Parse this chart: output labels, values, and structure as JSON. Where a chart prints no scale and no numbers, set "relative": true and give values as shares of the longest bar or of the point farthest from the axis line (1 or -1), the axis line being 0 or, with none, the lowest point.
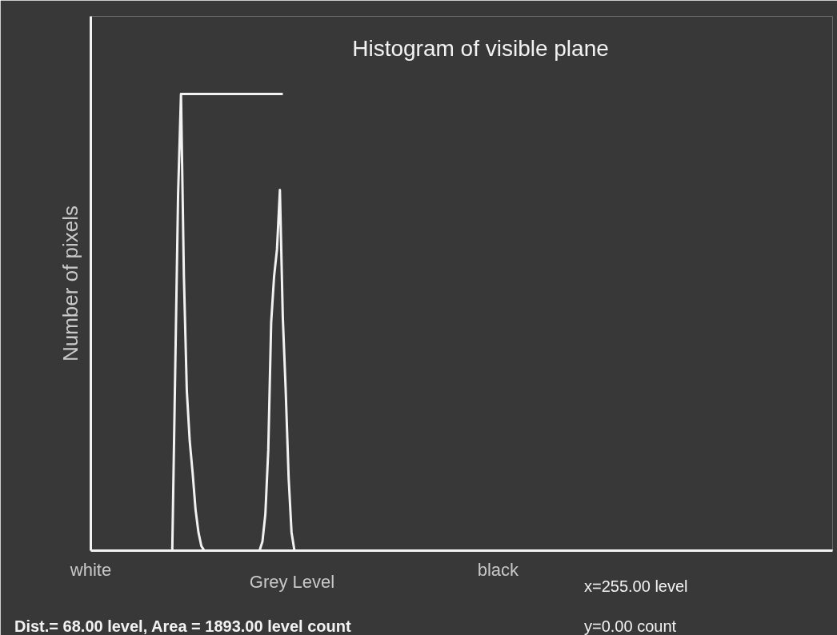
{
  "chart_data": {
    "type": "line",
    "title": "Histogram of visible plane",
    "xlabel": "Grey Level",
    "ylabel": "Number of pixels",
    "relative": true,
    "categories": [
      "white",
      null,
      null,
      null,
      null,
      null,
      null,
      null,
      null,
      null,
      null,
      null,
      null,
      null,
      null,
      null,
      null,
      null,
      null,
      null,
      null,
      null,
      null,
      null,
      null,
      null,
      null,
      null,
      null,
      null,
      null,
      null,
      null,
      null,
      null,
      null,
      null,
      null,
      null,
      null,
      null,
      null,
      null,
      null,
      null,
      null,
      null,
      null,
      null,
      null,
      null,
      null,
      null,
      null,
      null,
      null,
      null,
      null,
      null,
      null,
      null,
      null,
      null,
      null,
      null,
      null,
      null,
      null,
      null,
      null,
      null,
      null,
      null,
      null,
      null,
      null,
      null,
      null,
      null,
      null,
      null,
      null,
      null,
      null,
      null,
      null,
      null,
      null,
      null,
      null,
      null,
      null,
      null,
      null,
      null,
      null,
      null,
      null,
      null,
      null,
      null,
      null,
      null,
      null,
      null,
      null,
      null,
      null,
      null,
      null,
      null,
      null,
      null,
      null,
      null,
      null,
      null,
      null,
      null,
      null,
      null,
      null,
      null,
      null,
      null,
      null,
      null,
      null,
      null,
      null,
      null,
      null,
      null,
      null,
      null,
      null,
      null,
      null,
      null,
      null,
      "black",
      null,
      null,
      null,
      null,
      null,
      null,
      null,
      null,
      null,
      null,
      null,
      null,
      null,
      null,
      null,
      null,
      null,
      null,
      null,
      null,
      null,
      null,
      null,
      null,
      null,
      null,
      null,
      null,
      null,
      null,
      null,
      null,
      null,
      null,
      null,
      null,
      null,
      null,
      null,
      null,
      null,
      null,
      null,
      null,
      null,
      null,
      null,
      null,
      null,
      null,
      null,
      null,
      null,
      null,
      null,
      null,
      null,
      null,
      null,
      null,
      null,
      null,
      null,
      null,
      null,
      null,
      null,
      null,
      null,
      null,
      null,
      null,
      null,
      null,
      null,
      null,
      null,
      null,
      null,
      null,
      null,
      null,
      null,
      null,
      null,
      null,
      null,
      null,
      null,
      null,
      null,
      null,
      null,
      null,
      null,
      null,
      null,
      null,
      null,
      null,
      null,
      null,
      null,
      null,
      null,
      null,
      null,
      null,
      null,
      null,
      null,
      null,
      null,
      null,
      null
    ],
    "series": [
      {
        "color": "#f2f2f2",
        "values": [
          0,
          0,
          0,
          0,
          0,
          0,
          0,
          0,
          0,
          0,
          0,
          0,
          0,
          0,
          0,
          0,
          0,
          0,
          0,
          0,
          0,
          0,
          0,
          0,
          0,
          0,
          0,
          0,
          0,
          0.39,
          0.78,
          1.0,
          0.6,
          0.35,
          0.24,
          0.17,
          0.09,
          0.04,
          0.01,
          0,
          0,
          0,
          0,
          0,
          0,
          0,
          0,
          0,
          0,
          0,
          0,
          0,
          0,
          0,
          0,
          0,
          0,
          0,
          0,
          0.02,
          0.08,
          0.22,
          0.5,
          0.6,
          0.66,
          0.79,
          0.51,
          0.35,
          0.16,
          0.04,
          0,
          0,
          0,
          0,
          0,
          0,
          0,
          0,
          0,
          0,
          0,
          0,
          0,
          0,
          0,
          0,
          0,
          0,
          0,
          0,
          0,
          0,
          0,
          0,
          0,
          0,
          0,
          0,
          0,
          0,
          0,
          0,
          0,
          0,
          0,
          0,
          0,
          0,
          0,
          0,
          0,
          0,
          0,
          0,
          0,
          0,
          0,
          0,
          0,
          0,
          0,
          0,
          0,
          0,
          0,
          0,
          0,
          0,
          0,
          0,
          0,
          0,
          0,
          0,
          0,
          0,
          0,
          0,
          0,
          0,
          0,
          0,
          0,
          0,
          0,
          0,
          0,
          0,
          0,
          0,
          0,
          0,
          0,
          0,
          0,
          0,
          0,
          0,
          0,
          0,
          0,
          0,
          0,
          0,
          0,
          0,
          0,
          0,
          0,
          0,
          0,
          0,
          0,
          0,
          0,
          0,
          0,
          0,
          0,
          0,
          0,
          0,
          0,
          0,
          0,
          0,
          0,
          0,
          0,
          0,
          0,
          0,
          0,
          0,
          0,
          0,
          0,
          0,
          0,
          0,
          0,
          0,
          0,
          0,
          0,
          0,
          0,
          0,
          0,
          0,
          0,
          0,
          0,
          0,
          0,
          0,
          0,
          0,
          0,
          0,
          0,
          0,
          0,
          0,
          0,
          0,
          0,
          0,
          0,
          0,
          0,
          0,
          0,
          0,
          0,
          0,
          0,
          0,
          0,
          0,
          0,
          0,
          0,
          0,
          0,
          0,
          0,
          0,
          0,
          0,
          0,
          0,
          0,
          0,
          0,
          0
        ]
      },
      {
        "color": "#f2f2f2",
        "values": [
          null,
          null,
          null,
          null,
          null,
          null,
          null,
          null,
          null,
          null,
          null,
          null,
          null,
          null,
          null,
          null,
          null,
          null,
          null,
          null,
          null,
          null,
          null,
          null,
          null,
          null,
          null,
          null,
          null,
          null,
          null,
          1,
          1,
          1,
          1,
          1,
          1,
          1,
          1,
          1,
          1,
          1,
          1,
          1,
          1,
          1,
          1,
          1,
          1,
          1,
          1,
          1,
          1,
          1,
          1,
          1,
          1,
          1,
          1,
          1,
          1,
          1,
          1,
          1,
          1,
          1,
          1,
          null,
          null,
          null,
          null,
          null,
          null,
          null,
          null,
          null,
          null,
          null,
          null,
          null,
          null,
          null,
          null,
          null,
          null,
          null,
          null,
          null,
          null,
          null,
          null,
          null,
          null,
          null,
          null,
          null,
          null,
          null,
          null,
          null,
          null,
          null,
          null,
          null,
          null,
          null,
          null,
          null,
          null,
          null,
          null,
          null,
          null,
          null,
          null,
          null,
          null,
          null,
          null,
          null,
          null,
          null,
          null,
          null,
          null,
          null,
          null,
          null,
          null,
          null,
          null,
          null,
          null,
          null,
          null,
          null,
          null,
          null,
          null,
          null,
          null,
          null,
          null,
          null,
          null,
          null,
          null,
          null,
          null,
          null,
          null,
          null,
          null,
          null,
          null,
          null,
          null,
          null,
          null,
          null,
          null,
          null,
          null,
          null,
          null,
          null,
          null,
          null,
          null,
          null,
          null,
          null,
          null,
          null,
          null,
          null,
          null,
          null,
          null,
          null,
          null,
          null,
          null,
          null,
          null,
          null,
          null,
          null,
          null,
          null,
          null,
          null,
          null,
          null,
          null,
          null,
          null,
          null,
          null,
          null,
          null,
          null,
          null,
          null,
          null,
          null,
          null,
          null,
          null,
          null,
          null,
          null,
          null,
          null,
          null,
          null,
          null,
          null,
          null,
          null,
          null,
          null,
          null,
          null,
          null,
          null,
          null,
          null,
          null,
          null,
          null,
          null,
          null,
          null,
          null,
          null,
          null,
          null,
          null,
          null,
          null,
          null,
          null,
          null,
          null,
          null,
          null,
          null,
          null,
          null,
          null,
          null,
          null,
          null,
          null,
          null
        ]
      }
    ],
    "annotations": [
      "x=255.00 level",
      "Dist.= 68.00 level,  Area = 1893.00 level count",
      "y=0.00 count"
    ],
    "grid": false
  }
}
